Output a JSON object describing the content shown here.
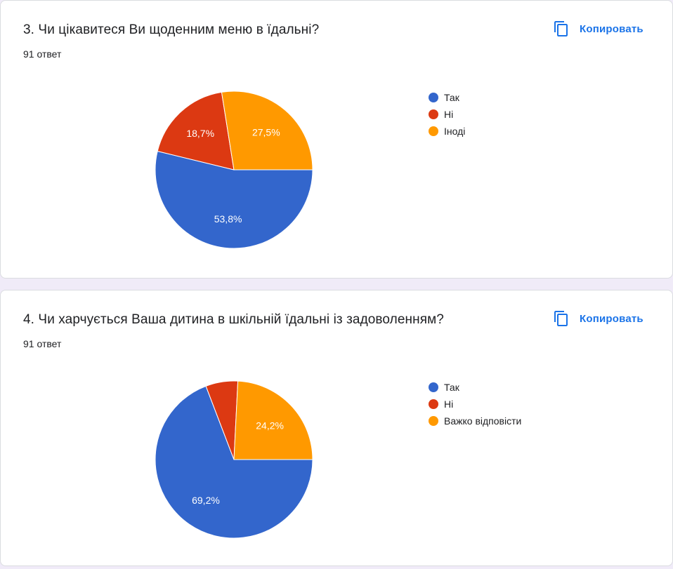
{
  "copy_label": "Копировать",
  "colors": {
    "tak": "#3366cc",
    "ni": "#dc3912",
    "third": "#ff9900"
  },
  "questions": [
    {
      "title": "3. Чи цікавитеся Ви щоденним меню в їдальні?",
      "responses": "91 ответ",
      "legend": [
        {
          "label": "Так",
          "color": "#3366cc"
        },
        {
          "label": "Ні",
          "color": "#dc3912"
        },
        {
          "label": "Іноді",
          "color": "#ff9900"
        }
      ]
    },
    {
      "title": "4. Чи харчується Ваша дитина в шкільній їдальні із задоволенням?",
      "responses": "91 ответ",
      "legend": [
        {
          "label": "Так",
          "color": "#3366cc"
        },
        {
          "label": "Ні",
          "color": "#dc3912"
        },
        {
          "label": "Важко відповісти",
          "color": "#ff9900"
        }
      ]
    }
  ],
  "chart_data": [
    {
      "type": "pie",
      "categories": [
        "Так",
        "Ні",
        "Іноді"
      ],
      "values": [
        53.8,
        18.7,
        27.5
      ],
      "value_labels": [
        "53,8%",
        "18,7%",
        "27,5%"
      ],
      "colors": [
        "#3366cc",
        "#dc3912",
        "#ff9900"
      ],
      "title": "3. Чи цікавитеся Ви щоденним меню в їдальні?",
      "legend_position": "right"
    },
    {
      "type": "pie",
      "categories": [
        "Так",
        "Ні",
        "Важко відповісти"
      ],
      "values": [
        69.2,
        6.6,
        24.2
      ],
      "value_labels": [
        "69,2%",
        "",
        "24,2%"
      ],
      "colors": [
        "#3366cc",
        "#dc3912",
        "#ff9900"
      ],
      "title": "4. Чи харчується Ваша дитина в шкільній їдальні із задоволенням?",
      "legend_position": "right"
    }
  ]
}
